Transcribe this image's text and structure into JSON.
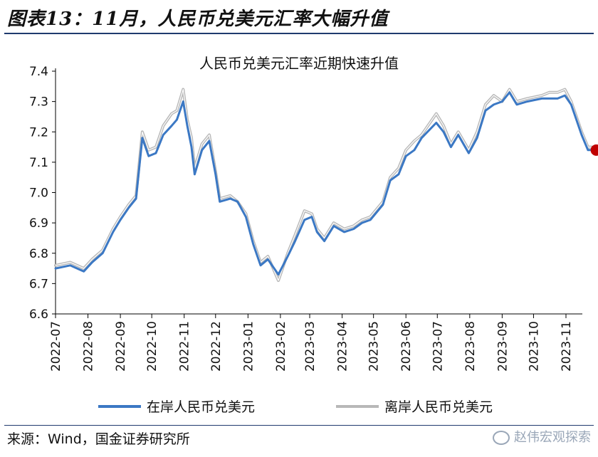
{
  "figure_title": "图表13：11月，人民币兑美元汇率大幅升值",
  "source": "来源：Wind，国金证券研究所",
  "watermark": "赵伟宏观探索",
  "colors": {
    "onshore": "#3b78c4",
    "offshore": "#b8b8b8",
    "marker": "#c00000",
    "rule": "#1f3a6e"
  },
  "chart_data": {
    "type": "line",
    "title": "人民币兑美元汇率近期快速升值",
    "ylim": [
      6.6,
      7.4
    ],
    "yticks": [
      6.6,
      6.7,
      6.8,
      6.9,
      7.0,
      7.1,
      7.2,
      7.3,
      7.4
    ],
    "xticks": [
      "2022-07",
      "2022-08",
      "2022-09",
      "2022-10",
      "2022-11",
      "2022-12",
      "2023-01",
      "2023-02",
      "2023-03",
      "2023-04",
      "2023-05",
      "2023-06",
      "2023-07",
      "2023-08",
      "2023-09",
      "2023-10",
      "2023-11"
    ],
    "legend_position": "bottom",
    "series": [
      {
        "name": "在岸人民币兑美元",
        "x": [
          "2022-07-01",
          "2022-07-15",
          "2022-07-28",
          "2022-08-05",
          "2022-08-15",
          "2022-08-25",
          "2022-09-01",
          "2022-09-09",
          "2022-09-16",
          "2022-09-22",
          "2022-09-28",
          "2022-10-05",
          "2022-10-12",
          "2022-10-20",
          "2022-10-25",
          "2022-10-31",
          "2022-11-04",
          "2022-11-08",
          "2022-11-11",
          "2022-11-18",
          "2022-11-25",
          "2022-12-01",
          "2022-12-05",
          "2022-12-15",
          "2022-12-22",
          "2022-12-30",
          "2023-01-06",
          "2023-01-13",
          "2023-01-20",
          "2023-01-30",
          "2023-02-08",
          "2023-02-15",
          "2023-02-24",
          "2023-03-03",
          "2023-03-08",
          "2023-03-15",
          "2023-03-24",
          "2023-04-03",
          "2023-04-12",
          "2023-04-20",
          "2023-04-28",
          "2023-05-10",
          "2023-05-17",
          "2023-05-25",
          "2023-06-01",
          "2023-06-09",
          "2023-06-16",
          "2023-06-30",
          "2023-07-07",
          "2023-07-14",
          "2023-07-21",
          "2023-07-31",
          "2023-08-08",
          "2023-08-16",
          "2023-08-24",
          "2023-09-01",
          "2023-09-08",
          "2023-09-15",
          "2023-09-25",
          "2023-10-09",
          "2023-10-16",
          "2023-10-24",
          "2023-10-31",
          "2023-11-06",
          "2023-11-10",
          "2023-11-16",
          "2023-11-22",
          "2023-11-28"
        ],
        "values": [
          6.75,
          6.76,
          6.74,
          6.77,
          6.8,
          6.87,
          6.91,
          6.95,
          6.98,
          7.18,
          7.12,
          7.13,
          7.19,
          7.22,
          7.24,
          7.3,
          7.22,
          7.15,
          7.06,
          7.14,
          7.17,
          7.06,
          6.97,
          6.98,
          6.97,
          6.92,
          6.83,
          6.76,
          6.78,
          6.73,
          6.79,
          6.84,
          6.91,
          6.92,
          6.87,
          6.84,
          6.89,
          6.87,
          6.88,
          6.9,
          6.91,
          6.96,
          7.04,
          7.06,
          7.12,
          7.14,
          7.18,
          7.23,
          7.2,
          7.15,
          7.19,
          7.13,
          7.18,
          7.27,
          7.29,
          7.3,
          7.33,
          7.29,
          7.3,
          7.31,
          7.31,
          7.31,
          7.32,
          7.29,
          7.25,
          7.19,
          7.14,
          7.14
        ]
      },
      {
        "name": "离岸人民币兑美元",
        "x": [
          "2022-07-01",
          "2022-07-15",
          "2022-07-28",
          "2022-08-05",
          "2022-08-15",
          "2022-08-25",
          "2022-09-01",
          "2022-09-09",
          "2022-09-16",
          "2022-09-22",
          "2022-09-28",
          "2022-10-05",
          "2022-10-12",
          "2022-10-20",
          "2022-10-25",
          "2022-10-31",
          "2022-11-04",
          "2022-11-08",
          "2022-11-11",
          "2022-11-18",
          "2022-11-25",
          "2022-12-01",
          "2022-12-05",
          "2022-12-15",
          "2022-12-22",
          "2022-12-30",
          "2023-01-06",
          "2023-01-13",
          "2023-01-20",
          "2023-01-30",
          "2023-02-08",
          "2023-02-15",
          "2023-02-24",
          "2023-03-03",
          "2023-03-08",
          "2023-03-15",
          "2023-03-24",
          "2023-04-03",
          "2023-04-12",
          "2023-04-20",
          "2023-04-28",
          "2023-05-10",
          "2023-05-17",
          "2023-05-25",
          "2023-06-01",
          "2023-06-09",
          "2023-06-16",
          "2023-06-30",
          "2023-07-07",
          "2023-07-14",
          "2023-07-21",
          "2023-07-31",
          "2023-08-08",
          "2023-08-16",
          "2023-08-24",
          "2023-09-01",
          "2023-09-08",
          "2023-09-15",
          "2023-09-25",
          "2023-10-09",
          "2023-10-16",
          "2023-10-24",
          "2023-10-31",
          "2023-11-06",
          "2023-11-10",
          "2023-11-16",
          "2023-11-22",
          "2023-11-28"
        ],
        "values": [
          6.76,
          6.77,
          6.75,
          6.78,
          6.81,
          6.88,
          6.92,
          6.96,
          6.99,
          7.2,
          7.14,
          7.15,
          7.22,
          7.26,
          7.27,
          7.34,
          7.24,
          7.18,
          7.08,
          7.16,
          7.19,
          7.07,
          6.98,
          6.99,
          6.97,
          6.93,
          6.84,
          6.77,
          6.79,
          6.71,
          6.8,
          6.86,
          6.94,
          6.93,
          6.88,
          6.85,
          6.9,
          6.88,
          6.89,
          6.91,
          6.92,
          6.97,
          7.05,
          7.08,
          7.14,
          7.17,
          7.19,
          7.26,
          7.22,
          7.16,
          7.2,
          7.14,
          7.2,
          7.29,
          7.32,
          7.3,
          7.34,
          7.3,
          7.31,
          7.32,
          7.33,
          7.33,
          7.34,
          7.3,
          7.26,
          7.2,
          7.15,
          7.15
        ]
      }
    ],
    "highlight_point": {
      "x": "2023-11-30",
      "value": 7.14
    }
  }
}
